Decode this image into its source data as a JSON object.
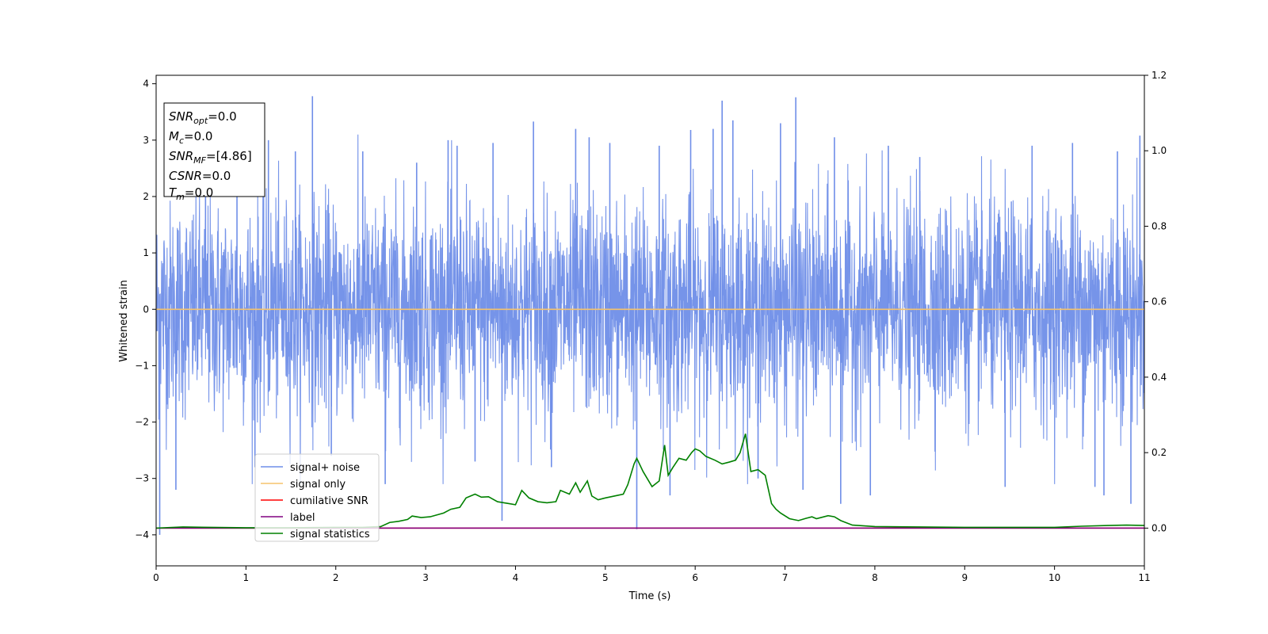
{
  "chart_data": {
    "type": "line",
    "title": "",
    "xlabel": "Time (s)",
    "ylabel": "Whitened strain",
    "xlim": [
      0,
      11
    ],
    "ylim": [
      -4.55,
      4.15
    ],
    "y2lim": [
      -0.1,
      1.2
    ],
    "grid": false,
    "x_ticks": [
      0,
      1,
      2,
      3,
      4,
      5,
      6,
      7,
      8,
      9,
      10,
      11
    ],
    "y_ticks": [
      -4,
      -3,
      -2,
      -1,
      0,
      1,
      2,
      3,
      4
    ],
    "y2_ticks": [
      0.0,
      0.2,
      0.4,
      0.6,
      0.8,
      1.0,
      1.2
    ],
    "y2_tick_labels": [
      "0.0",
      "0.2",
      "0.4",
      "0.6",
      "0.8",
      "1.0",
      "1.2"
    ],
    "legend_position": "lower-left",
    "annotation": {
      "lines": [
        {
          "sym": "SNR",
          "sub": "opt",
          "val": "=0.0"
        },
        {
          "sym": "M",
          "sub": "c",
          "val": "=0.0"
        },
        {
          "sym": "SNR",
          "sub": "MF",
          "val": "=[4.86]"
        },
        {
          "sym": "CSNR",
          "sub": "",
          "val": "=0.0"
        },
        {
          "sym": "T",
          "sub": "m",
          "val": "=0.0"
        }
      ]
    },
    "series": [
      {
        "name": "signal+ noise",
        "color": "#6f8ee8",
        "axis": "left",
        "kind": "noise",
        "band": [
          -2.7,
          2.7
        ],
        "spikes": [
          [
            0.04,
            -4.0
          ],
          [
            0.22,
            -3.2
          ],
          [
            0.55,
            3.1
          ],
          [
            0.9,
            2.6
          ],
          [
            1.1,
            -2.8
          ],
          [
            1.25,
            3.0
          ],
          [
            1.55,
            2.8
          ],
          [
            1.74,
            3.78
          ],
          [
            1.95,
            -2.6
          ],
          [
            2.3,
            2.8
          ],
          [
            2.55,
            -3.1
          ],
          [
            2.9,
            2.6
          ],
          [
            3.25,
            3.0
          ],
          [
            3.35,
            2.9
          ],
          [
            3.55,
            -2.7
          ],
          [
            3.75,
            2.95
          ],
          [
            3.85,
            -3.75
          ],
          [
            4.2,
            3.33
          ],
          [
            4.4,
            -2.8
          ],
          [
            4.67,
            3.2
          ],
          [
            4.82,
            3.05
          ],
          [
            5.05,
            2.95
          ],
          [
            5.35,
            -3.9
          ],
          [
            5.6,
            2.9
          ],
          [
            5.72,
            -3.3
          ],
          [
            5.95,
            3.18
          ],
          [
            6.2,
            3.2
          ],
          [
            6.3,
            3.7
          ],
          [
            6.42,
            3.35
          ],
          [
            6.7,
            -3.0
          ],
          [
            6.95,
            3.3
          ],
          [
            7.12,
            3.76
          ],
          [
            7.2,
            -3.2
          ],
          [
            7.55,
            3.05
          ],
          [
            7.62,
            -3.45
          ],
          [
            7.95,
            -3.3
          ],
          [
            8.15,
            2.9
          ],
          [
            8.5,
            2.7
          ],
          [
            9.45,
            -3.15
          ],
          [
            9.75,
            2.9
          ],
          [
            10.2,
            2.95
          ],
          [
            10.45,
            -3.15
          ],
          [
            10.55,
            -3.3
          ],
          [
            10.85,
            -3.45
          ],
          [
            10.95,
            3.08
          ],
          [
            10.7,
            2.8
          ]
        ]
      },
      {
        "name": "signal only",
        "color": "#f5c36b",
        "axis": "left",
        "x": [
          0,
          11
        ],
        "y": [
          0,
          0
        ]
      },
      {
        "name": "cumilative SNR",
        "color": "#ff0000",
        "axis": "right",
        "x": [
          0,
          11
        ],
        "y": [
          0,
          0
        ]
      },
      {
        "name": "label",
        "color": "#800080",
        "axis": "right",
        "x": [
          0,
          11
        ],
        "y": [
          0,
          0
        ]
      },
      {
        "name": "signal statistics",
        "color": "#008000",
        "axis": "right",
        "x": [
          0,
          0.3,
          0.6,
          1.0,
          1.5,
          2.0,
          2.3,
          2.5,
          2.6,
          2.7,
          2.8,
          2.85,
          2.95,
          3.05,
          3.2,
          3.28,
          3.38,
          3.45,
          3.5,
          3.55,
          3.62,
          3.7,
          3.8,
          3.9,
          4.0,
          4.07,
          4.15,
          4.25,
          4.35,
          4.45,
          4.5,
          4.6,
          4.67,
          4.72,
          4.8,
          4.85,
          4.92,
          5.0,
          5.1,
          5.2,
          5.25,
          5.32,
          5.35,
          5.42,
          5.52,
          5.6,
          5.66,
          5.7,
          5.75,
          5.82,
          5.9,
          5.96,
          6.0,
          6.05,
          6.12,
          6.22,
          6.3,
          6.38,
          6.45,
          6.5,
          6.56,
          6.62,
          6.7,
          6.78,
          6.85,
          6.9,
          6.95,
          7.05,
          7.15,
          7.22,
          7.3,
          7.35,
          7.4,
          7.48,
          7.55,
          7.62,
          7.75,
          8.0,
          8.5,
          9.0,
          9.5,
          10.0,
          10.3,
          10.6,
          10.8,
          11.0
        ],
        "y": [
          0.0,
          0.003,
          0.002,
          0.001,
          0.001,
          0.002,
          0.002,
          0.004,
          0.015,
          0.018,
          0.023,
          0.032,
          0.028,
          0.03,
          0.04,
          0.05,
          0.055,
          0.08,
          0.085,
          0.09,
          0.082,
          0.083,
          0.07,
          0.066,
          0.062,
          0.1,
          0.08,
          0.07,
          0.067,
          0.07,
          0.1,
          0.09,
          0.12,
          0.095,
          0.125,
          0.085,
          0.075,
          0.08,
          0.085,
          0.09,
          0.115,
          0.17,
          0.185,
          0.15,
          0.11,
          0.125,
          0.22,
          0.14,
          0.16,
          0.185,
          0.18,
          0.2,
          0.21,
          0.205,
          0.19,
          0.18,
          0.17,
          0.175,
          0.18,
          0.2,
          0.25,
          0.15,
          0.155,
          0.14,
          0.065,
          0.05,
          0.04,
          0.025,
          0.02,
          0.025,
          0.03,
          0.025,
          0.028,
          0.033,
          0.03,
          0.02,
          0.008,
          0.004,
          0.003,
          0.002,
          0.002,
          0.002,
          0.005,
          0.007,
          0.008,
          0.007
        ]
      }
    ]
  }
}
